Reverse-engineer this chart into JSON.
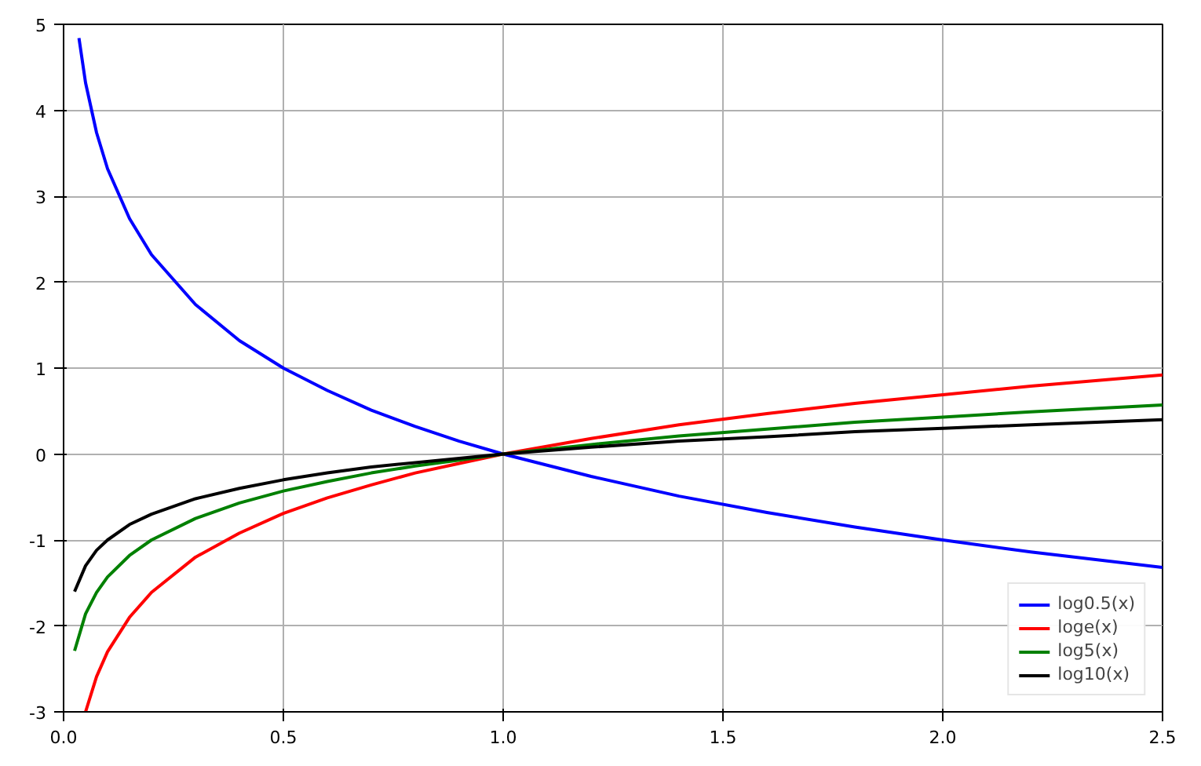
{
  "chart_data": {
    "type": "line",
    "x": [
      0.025,
      0.05,
      0.075,
      0.1,
      0.15,
      0.2,
      0.3,
      0.4,
      0.5,
      0.6,
      0.7,
      0.8,
      0.9,
      1.0,
      1.2,
      1.4,
      1.6,
      1.8,
      2.0,
      2.2,
      2.5
    ],
    "series": [
      {
        "name": "log0.5(x)",
        "color": "#0000ff",
        "x": [
          0.035,
          0.05,
          0.075,
          0.1,
          0.15,
          0.2,
          0.3,
          0.4,
          0.5,
          0.6,
          0.7,
          0.8,
          0.9,
          1.0,
          1.2,
          1.4,
          1.6,
          1.8,
          2.0,
          2.2,
          2.5
        ],
        "values": [
          4.84,
          4.32,
          3.74,
          3.32,
          2.74,
          2.32,
          1.74,
          1.32,
          1.0,
          0.74,
          0.51,
          0.32,
          0.15,
          0,
          -0.26,
          -0.49,
          -0.68,
          -0.85,
          -1.0,
          -1.14,
          -1.32
        ]
      },
      {
        "name": "loge(x)",
        "color": "#ff0000",
        "values": [
          null,
          -3.0,
          -2.59,
          -2.3,
          -1.9,
          -1.61,
          -1.2,
          -0.92,
          -0.69,
          -0.51,
          -0.36,
          -0.22,
          -0.11,
          0,
          0.18,
          0.34,
          0.47,
          0.59,
          0.69,
          0.79,
          0.92
        ]
      },
      {
        "name": "log5(x)",
        "color": "#008000",
        "values": [
          -2.29,
          -1.86,
          -1.61,
          -1.43,
          -1.18,
          -1.0,
          -0.75,
          -0.57,
          -0.43,
          -0.32,
          -0.22,
          -0.14,
          -0.07,
          0,
          0.11,
          0.21,
          0.29,
          0.37,
          0.43,
          0.49,
          0.57
        ]
      },
      {
        "name": "log10(x)",
        "color": "#000000",
        "values": [
          -1.6,
          -1.3,
          -1.12,
          -1.0,
          -0.82,
          -0.7,
          -0.52,
          -0.4,
          -0.3,
          -0.22,
          -0.15,
          -0.1,
          -0.05,
          0,
          0.08,
          0.15,
          0.2,
          0.26,
          0.3,
          0.34,
          0.4
        ]
      }
    ],
    "xlim": [
      0,
      2.5
    ],
    "ylim": [
      -3,
      5
    ],
    "xticks": [
      {
        "value": 0,
        "label": "0.0"
      },
      0.5,
      {
        "value": 1,
        "label": "1.0"
      },
      1.5,
      {
        "value": 2,
        "label": "2.0"
      },
      2.5
    ],
    "yticks": [
      -3,
      -2,
      -1,
      0,
      1,
      2,
      3,
      4,
      5
    ],
    "grid": true,
    "legend": "bottom right",
    "line_style": "solid"
  }
}
